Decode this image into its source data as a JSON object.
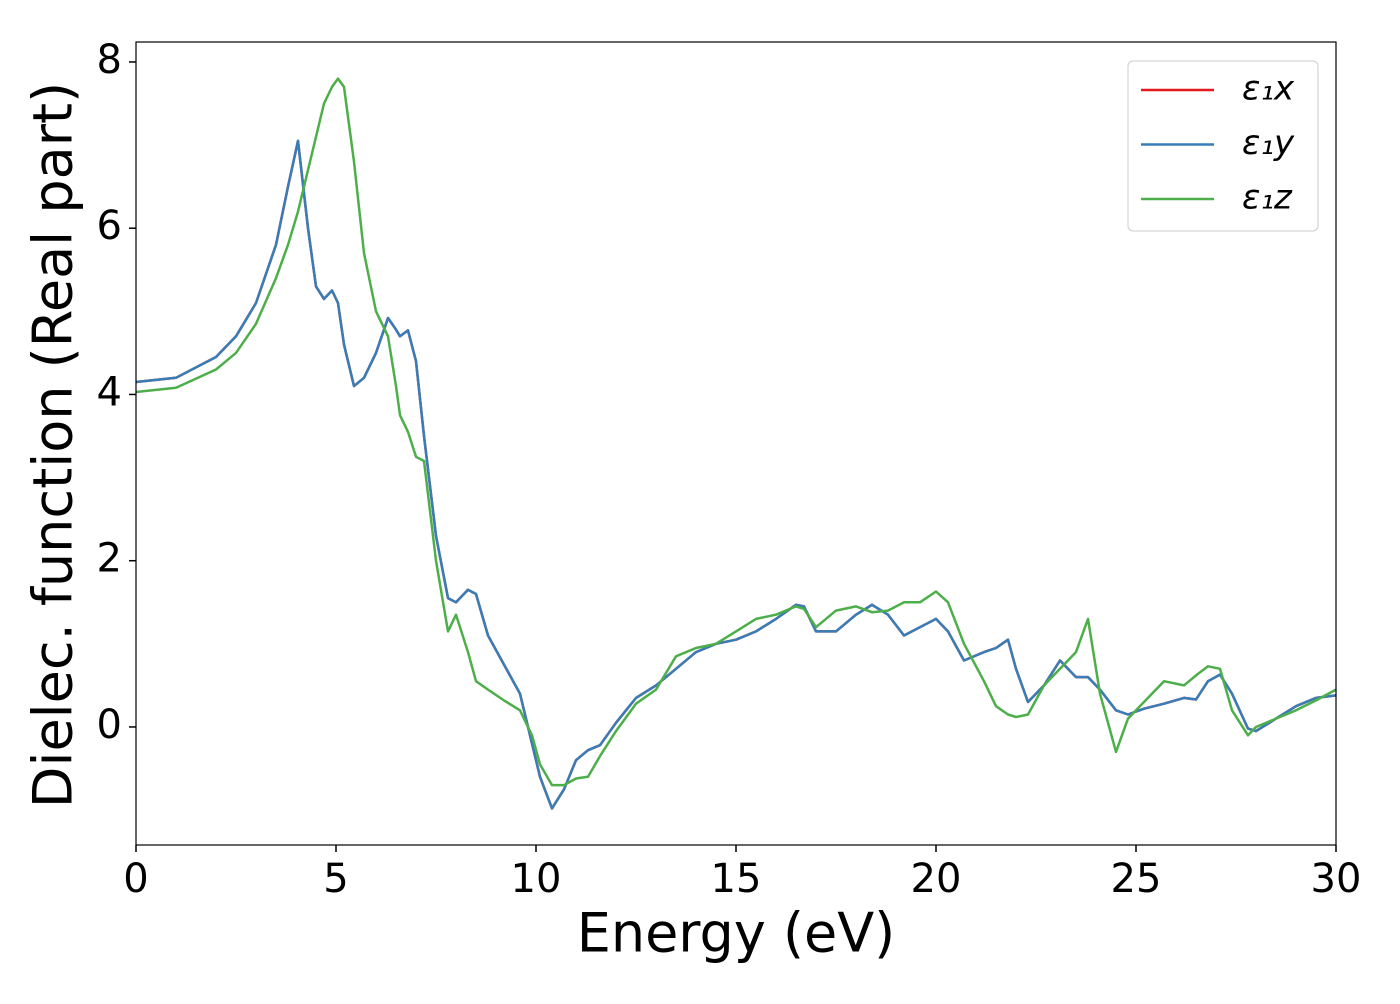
{
  "chart_data": {
    "type": "line",
    "xlabel": "Energy (eV)",
    "ylabel": "Dielec. function (Real part)",
    "x": [
      0,
      1,
      2,
      2.5,
      3,
      3.5,
      3.8,
      4.05,
      4.3,
      4.5,
      4.7,
      4.9,
      5.05,
      5.2,
      5.45,
      5.7,
      6.0,
      6.3,
      6.5,
      6.6,
      6.8,
      7.0,
      7.2,
      7.5,
      7.8,
      8.0,
      8.3,
      8.5,
      8.8,
      9.2,
      9.6,
      9.9,
      10.1,
      10.4,
      10.7,
      11.0,
      11.3,
      11.6,
      12.0,
      12.5,
      13.0,
      13.5,
      14.0,
      14.5,
      15.0,
      15.5,
      16.0,
      16.5,
      16.7,
      17.0,
      17.5,
      18.0,
      18.4,
      18.8,
      19.2,
      19.6,
      20.0,
      20.3,
      20.7,
      21.2,
      21.5,
      21.8,
      22.0,
      22.3,
      22.7,
      23.1,
      23.5,
      23.8,
      24.1,
      24.5,
      24.8,
      25.2,
      25.7,
      26.2,
      26.5,
      26.8,
      27.1,
      27.4,
      27.8,
      28.0,
      28.5,
      29.0,
      29.5,
      30
    ],
    "series": [
      {
        "name": "ε₁x",
        "color": "#e41a1c",
        "values": [
          4.15,
          4.2,
          4.45,
          4.7,
          5.1,
          5.8,
          6.5,
          7.05,
          6.0,
          5.3,
          5.15,
          5.25,
          5.1,
          4.6,
          4.1,
          4.2,
          4.5,
          4.92,
          4.78,
          4.7,
          4.77,
          4.4,
          3.5,
          2.3,
          1.55,
          1.5,
          1.65,
          1.6,
          1.1,
          0.75,
          0.4,
          -0.2,
          -0.6,
          -0.98,
          -0.75,
          -0.4,
          -0.28,
          -0.22,
          0.05,
          0.35,
          0.5,
          0.7,
          0.9,
          1.0,
          1.05,
          1.15,
          1.3,
          1.47,
          1.45,
          1.15,
          1.15,
          1.35,
          1.47,
          1.35,
          1.1,
          1.2,
          1.3,
          1.15,
          0.8,
          0.9,
          0.95,
          1.05,
          0.7,
          0.3,
          0.5,
          0.8,
          0.6,
          0.6,
          0.45,
          0.2,
          0.15,
          0.22,
          0.28,
          0.35,
          0.33,
          0.55,
          0.63,
          0.4,
          -0.02,
          -0.05,
          0.1,
          0.25,
          0.35,
          0.38
        ]
      },
      {
        "name": "ε₁y",
        "color": "#377eb8",
        "values": [
          4.15,
          4.2,
          4.45,
          4.7,
          5.1,
          5.8,
          6.5,
          7.05,
          6.0,
          5.3,
          5.15,
          5.25,
          5.1,
          4.6,
          4.1,
          4.2,
          4.5,
          4.92,
          4.78,
          4.7,
          4.77,
          4.4,
          3.5,
          2.3,
          1.55,
          1.5,
          1.65,
          1.6,
          1.1,
          0.75,
          0.4,
          -0.2,
          -0.6,
          -0.98,
          -0.75,
          -0.4,
          -0.28,
          -0.22,
          0.05,
          0.35,
          0.5,
          0.7,
          0.9,
          1.0,
          1.05,
          1.15,
          1.3,
          1.47,
          1.45,
          1.15,
          1.15,
          1.35,
          1.47,
          1.35,
          1.1,
          1.2,
          1.3,
          1.15,
          0.8,
          0.9,
          0.95,
          1.05,
          0.7,
          0.3,
          0.5,
          0.8,
          0.6,
          0.6,
          0.45,
          0.2,
          0.15,
          0.22,
          0.28,
          0.35,
          0.33,
          0.55,
          0.63,
          0.4,
          -0.02,
          -0.05,
          0.1,
          0.25,
          0.35,
          0.38
        ]
      },
      {
        "name": "ε₁z",
        "color": "#4daf4a",
        "values": [
          4.03,
          4.08,
          4.3,
          4.5,
          4.85,
          5.4,
          5.8,
          6.2,
          6.7,
          7.1,
          7.5,
          7.7,
          7.8,
          7.7,
          6.8,
          5.7,
          5.0,
          4.7,
          4.1,
          3.75,
          3.55,
          3.25,
          3.2,
          2.0,
          1.15,
          1.35,
          0.9,
          0.55,
          0.45,
          0.32,
          0.2,
          -0.1,
          -0.45,
          -0.7,
          -0.7,
          -0.62,
          -0.6,
          -0.35,
          -0.05,
          0.28,
          0.45,
          0.85,
          0.95,
          1.0,
          1.15,
          1.3,
          1.35,
          1.45,
          1.42,
          1.2,
          1.4,
          1.45,
          1.38,
          1.4,
          1.5,
          1.5,
          1.63,
          1.5,
          1.0,
          0.55,
          0.25,
          0.15,
          0.12,
          0.15,
          0.5,
          0.7,
          0.9,
          1.3,
          0.4,
          -0.3,
          0.1,
          0.3,
          0.55,
          0.5,
          0.62,
          0.73,
          0.7,
          0.2,
          -0.1,
          0.0,
          0.1,
          0.2,
          0.32,
          0.45
        ]
      }
    ],
    "xlim": [
      0,
      30
    ],
    "xticks": [
      0,
      5,
      10,
      15,
      20,
      25,
      30
    ],
    "ylim": [
      -1.42,
      8.24
    ],
    "yticks": [
      0,
      2,
      4,
      6,
      8
    ],
    "legend": "upper right"
  }
}
